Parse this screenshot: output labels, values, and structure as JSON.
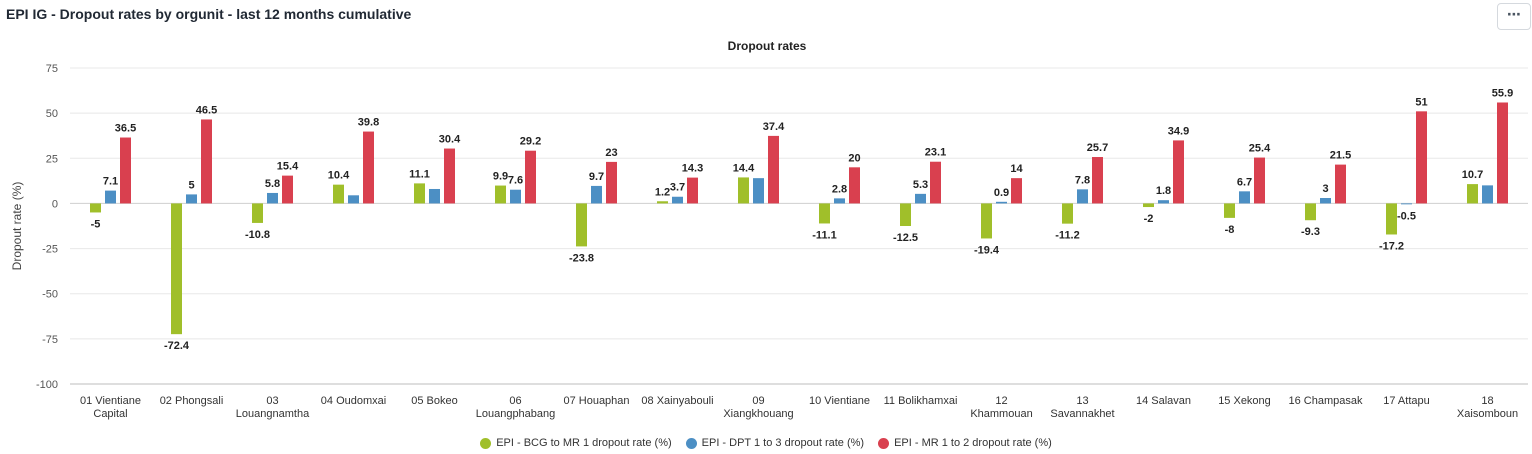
{
  "widget": {
    "title": "EPI IG - Dropout rates by orgunit - last 12 months cumulative",
    "menu_label": "⋯"
  },
  "colors": {
    "bcg_mr1": "#a0bf2a",
    "dpt": "#4c8fc4",
    "mr12": "#d9404f"
  },
  "chart_data": {
    "type": "bar",
    "title": "Dropout rates",
    "ylabel": "Dropout rate (%)",
    "ylim": [
      -100,
      75
    ],
    "yticks": [
      75,
      50,
      25,
      0,
      -25,
      -50,
      -75,
      -100
    ],
    "grid": true,
    "legend_position": "bottom",
    "categories": [
      [
        "01 Vientiane",
        "Capital"
      ],
      [
        "02 Phongsali"
      ],
      [
        "03",
        "Louangnamtha"
      ],
      [
        "04 Oudomxai"
      ],
      [
        "05 Bokeo"
      ],
      [
        "06",
        "Louangphabang"
      ],
      [
        "07 Houaphan"
      ],
      [
        "08 Xainyabouli"
      ],
      [
        "09",
        "Xiangkhouang"
      ],
      [
        "10 Vientiane"
      ],
      [
        "11 Bolikhamxai"
      ],
      [
        "12",
        "Khammouan"
      ],
      [
        "13",
        "Savannakhet"
      ],
      [
        "14 Salavan"
      ],
      [
        "15 Xekong"
      ],
      [
        "16 Champasak"
      ],
      [
        "17 Attapu"
      ],
      [
        "18",
        "Xaisomboun"
      ]
    ],
    "series": [
      {
        "name": "EPI - BCG to MR 1 dropout rate (%)",
        "color_key": "bcg_mr1",
        "values": [
          -5,
          -72.4,
          -10.8,
          10.4,
          11.1,
          9.9,
          -23.8,
          1.2,
          14.4,
          -11.1,
          -12.5,
          -19.4,
          -11.2,
          -2,
          -8,
          -9.3,
          -17.2,
          10.7
        ],
        "shown_labels": [
          true,
          true,
          true,
          true,
          true,
          true,
          true,
          true,
          true,
          true,
          true,
          true,
          true,
          true,
          true,
          true,
          true,
          true
        ]
      },
      {
        "name": "EPI - DPT 1 to 3 dropout rate (%)",
        "color_key": "dpt",
        "values": [
          7.1,
          5,
          5.8,
          4.5,
          8,
          7.6,
          9.7,
          3.7,
          14,
          2.8,
          5.3,
          0.9,
          7.8,
          1.8,
          6.7,
          3,
          -0.5,
          10
        ],
        "shown_labels": [
          true,
          true,
          true,
          false,
          false,
          true,
          true,
          true,
          false,
          true,
          true,
          true,
          true,
          true,
          true,
          true,
          true,
          false
        ]
      },
      {
        "name": "EPI - MR 1 to 2 dropout rate (%)",
        "color_key": "mr12",
        "values": [
          36.5,
          46.5,
          15.4,
          39.8,
          30.4,
          29.2,
          23,
          14.3,
          37.4,
          20,
          23.1,
          14,
          25.7,
          34.9,
          25.4,
          21.5,
          51,
          55.9
        ],
        "shown_labels": [
          true,
          true,
          true,
          true,
          true,
          true,
          true,
          true,
          true,
          true,
          true,
          true,
          true,
          true,
          true,
          true,
          true,
          true
        ]
      }
    ]
  }
}
